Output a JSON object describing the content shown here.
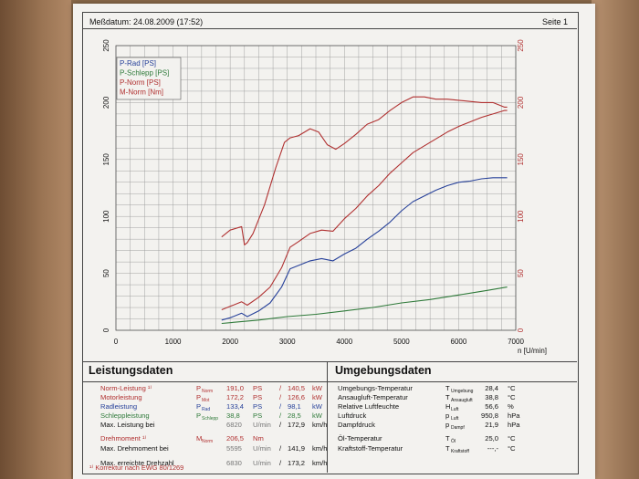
{
  "header": {
    "date_label": "Meßdatum: 24.08.2009 (17:52)",
    "page_label": "Seite 1"
  },
  "chart_data": {
    "type": "line",
    "xlim": [
      0,
      7000
    ],
    "ylim": [
      0,
      250
    ],
    "xlabel": "n [U/min]",
    "x_ticks": [
      "0",
      "1000",
      "2000",
      "3000",
      "4000",
      "5000",
      "6000",
      "7000"
    ],
    "y_ticks_left": [
      "0",
      "50",
      "100",
      "150",
      "200",
      "250"
    ],
    "y_ticks_right": [
      "0",
      "50",
      "100",
      "150",
      "200",
      "250"
    ],
    "grid": true,
    "legend_position": "top-left",
    "series": [
      {
        "name": "P-Rad [PS]",
        "color": "#27419a",
        "x": [
          1850,
          2000,
          2200,
          2300,
          2500,
          2700,
          2900,
          3050,
          3200,
          3400,
          3600,
          3800,
          4000,
          4200,
          4400,
          4600,
          4800,
          5000,
          5200,
          5400,
          5600,
          5800,
          6000,
          6200,
          6400,
          6600,
          6800,
          6850
        ],
        "y": [
          9,
          11,
          15,
          12,
          17,
          24,
          38,
          54,
          57,
          61,
          63,
          61,
          67,
          72,
          80,
          87,
          95,
          105,
          113,
          118,
          123,
          127,
          130,
          131,
          133,
          134,
          134,
          134
        ]
      },
      {
        "name": "P-Schlepp [PS]",
        "color": "#2f7a3a",
        "x": [
          1850,
          2500,
          3000,
          3500,
          4000,
          4500,
          5000,
          5500,
          6000,
          6500,
          6850
        ],
        "y": [
          6,
          9,
          12,
          14,
          17,
          20,
          24,
          27,
          31,
          35,
          38
        ]
      },
      {
        "name": "P-Norm [PS]",
        "color": "#b03030",
        "x": [
          1850,
          2000,
          2200,
          2300,
          2500,
          2700,
          2900,
          3050,
          3200,
          3400,
          3600,
          3800,
          4000,
          4200,
          4400,
          4600,
          4800,
          5000,
          5200,
          5400,
          5600,
          5800,
          6000,
          6200,
          6400,
          6600,
          6800,
          6850
        ],
        "y": [
          18,
          21,
          25,
          22,
          29,
          38,
          55,
          73,
          78,
          85,
          88,
          87,
          98,
          107,
          118,
          127,
          138,
          147,
          156,
          162,
          168,
          174,
          179,
          183,
          187,
          190,
          193,
          193
        ]
      },
      {
        "name": "M-Norm [Nm]",
        "color": "#b03030",
        "x": [
          1850,
          2000,
          2200,
          2250,
          2300,
          2400,
          2600,
          2800,
          2950,
          3050,
          3200,
          3400,
          3550,
          3700,
          3850,
          4000,
          4200,
          4400,
          4600,
          4800,
          5000,
          5200,
          5400,
          5600,
          5800,
          6000,
          6200,
          6400,
          6600,
          6800,
          6850
        ],
        "y": [
          82,
          88,
          91,
          75,
          77,
          85,
          110,
          143,
          165,
          169,
          171,
          177,
          174,
          163,
          159,
          164,
          172,
          181,
          185,
          193,
          200,
          205,
          205,
          203,
          203,
          202,
          201,
          200,
          200,
          196,
          196
        ]
      }
    ]
  },
  "left_section": {
    "title": "Leistungsdaten",
    "rows": [
      {
        "label": "Norm-Leistung ¹⁾",
        "sym": "P",
        "sub": "Norm",
        "v1": "191,0",
        "u1": "PS",
        "sep": "/",
        "v2": "140,5",
        "u2": "kW",
        "color": "#b03030"
      },
      {
        "label": "Motorleistung",
        "sym": "P",
        "sub": "Mot",
        "v1": "172,2",
        "u1": "PS",
        "sep": "/",
        "v2": "126,6",
        "u2": "kW",
        "color": "#b03030"
      },
      {
        "label": "Radleistung",
        "sym": "P",
        "sub": "Rad",
        "v1": "133,4",
        "u1": "PS",
        "sep": "/",
        "v2": "98,1",
        "u2": "kW",
        "color": "#27419a"
      },
      {
        "label": "Schleppleistung",
        "sym": "P",
        "sub": "Schlepp",
        "v1": "38,8",
        "u1": "PS",
        "sep": "/",
        "v2": "28,5",
        "u2": "kW",
        "color": "#2f7a3a"
      },
      {
        "label": "Max. Leistung bei",
        "sym": "",
        "sub": "",
        "v1": "6820",
        "u1": "U/min",
        "sep": "/",
        "v2": "172,9",
        "u2": "km/h",
        "color": "#111111"
      },
      {
        "label": "Drehmoment ¹⁾",
        "sym": "M",
        "sub": "Norm",
        "v1": "206,5",
        "u1": "Nm",
        "sep": "",
        "v2": "",
        "u2": "",
        "color": "#b03030"
      },
      {
        "label": "Max. Drehmoment bei",
        "sym": "",
        "sub": "",
        "v1": "5595",
        "u1": "U/min",
        "sep": "/",
        "v2": "141,9",
        "u2": "km/h",
        "color": "#111111"
      },
      {
        "label": "Max. erreichte Drehzahl",
        "sym": "",
        "sub": "",
        "v1": "6830",
        "u1": "U/min",
        "sep": "/",
        "v2": "173,2",
        "u2": "km/h",
        "color": "#111111"
      }
    ],
    "footnote": "¹⁾ Korrektur nach EWG 80/1269"
  },
  "right_section": {
    "title": "Umgebungsdaten",
    "rows": [
      {
        "label": "Umgebungs-Temperatur",
        "sym": "T",
        "sub": "Umgebung",
        "value": "28,4",
        "unit": "°C"
      },
      {
        "label": "Ansaugluft-Temperatur",
        "sym": "T",
        "sub": "Ansaugluft",
        "value": "38,8",
        "unit": "°C"
      },
      {
        "label": "Relative Luftfeuchte",
        "sym": "H",
        "sub": "Luft",
        "value": "56,6",
        "unit": "%"
      },
      {
        "label": "Luftdruck",
        "sym": "p",
        "sub": "Luft",
        "value": "950,8",
        "unit": "hPa"
      },
      {
        "label": "Dampfdruck",
        "sym": "p",
        "sub": "Dampf",
        "value": "21,9",
        "unit": "hPa"
      },
      {
        "label": "Öl-Temperatur",
        "sym": "T",
        "sub": "Öl",
        "value": "25,0",
        "unit": "°C"
      },
      {
        "label": "Kraftstoff-Temperatur",
        "sym": "T",
        "sub": "Kraftstoff",
        "value": "---,-",
        "unit": "°C"
      }
    ]
  }
}
